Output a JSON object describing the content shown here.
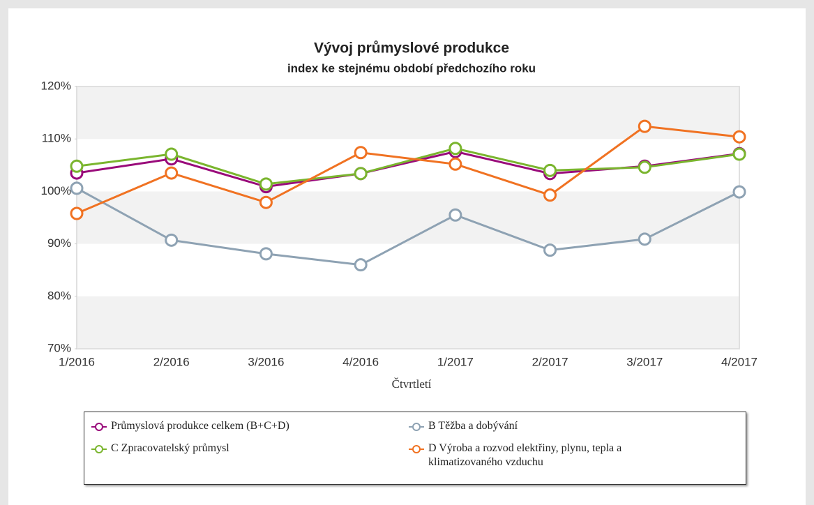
{
  "chart_data": {
    "type": "line",
    "title": "Vývoj průmyslové produkce",
    "subtitle": "index ke stejnému období předchozího roku",
    "x_label": "Čtvrtletí",
    "categories": [
      "1/2016",
      "2/2016",
      "3/2016",
      "4/2016",
      "1/2017",
      "2/2017",
      "3/2017",
      "4/2017"
    ],
    "ylim": [
      70,
      120
    ],
    "yticks": [
      {
        "value": 70,
        "label": "70%"
      },
      {
        "value": 80,
        "label": "80%"
      },
      {
        "value": 90,
        "label": "90%"
      },
      {
        "value": 100,
        "label": "100%"
      },
      {
        "value": 110,
        "label": "110%"
      },
      {
        "value": 120,
        "label": "120%"
      }
    ],
    "series": [
      {
        "name": "Průmyslová produkce celkem (B+C+D)",
        "color": "#990a7a",
        "values": [
          103.5,
          106.2,
          100.9,
          103.4,
          107.6,
          103.4,
          104.8,
          107.2
        ]
      },
      {
        "name": "B Těžba a dobývání",
        "color": "#8ea2b3",
        "values": [
          100.6,
          90.7,
          88.1,
          86.0,
          95.5,
          88.8,
          90.9,
          99.9
        ]
      },
      {
        "name": "C Zpracovatelský průmysl",
        "color": "#7ab52e",
        "values": [
          104.8,
          107.1,
          101.4,
          103.4,
          108.2,
          104.0,
          104.6,
          107.1
        ]
      },
      {
        "name": "D Výroba a rozvod elektřiny, plynu, tepla a klimatizovaného vzduchu",
        "color": "#f07222",
        "values": [
          95.8,
          103.5,
          97.9,
          107.4,
          105.2,
          99.3,
          112.4,
          110.4
        ]
      }
    ]
  }
}
